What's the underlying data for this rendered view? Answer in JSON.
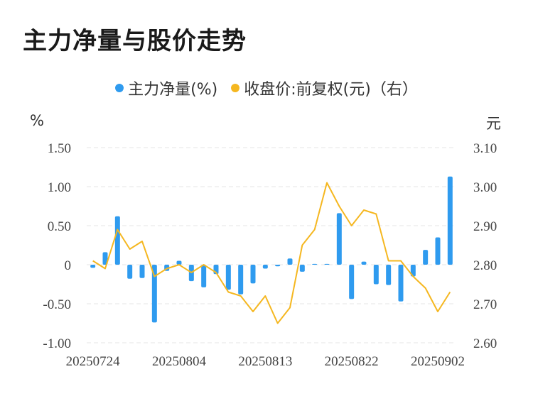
{
  "title": "主力净量与股价走势",
  "legend": {
    "bar_label": "主力净量(%)",
    "line_label": "收盘价:前复权(元)（右）"
  },
  "units": {
    "left": "%",
    "right": "元"
  },
  "colors": {
    "bar": "#2f9bef",
    "line": "#f5b720",
    "grid": "#e6e6e6"
  },
  "chart_data": {
    "type": "bar+line",
    "title": "主力净量与股价走势",
    "x_tick_labels": [
      "20250724",
      "20250804",
      "20250813",
      "20250822",
      "20250902"
    ],
    "y_left": {
      "label": "%",
      "ylim": [
        -1.0,
        1.5
      ],
      "ticks": [
        "1.50",
        "1.00",
        "0.50",
        "0",
        "-0.50",
        "-1.00"
      ],
      "tick_values": [
        1.5,
        1.0,
        0.5,
        0,
        -0.5,
        -1.0
      ]
    },
    "y_right": {
      "label": "元",
      "ylim": [
        2.6,
        3.1
      ],
      "ticks": [
        "3.10",
        "3.00",
        "2.90",
        "2.80",
        "2.70",
        "2.60"
      ],
      "tick_values": [
        3.1,
        3.0,
        2.9,
        2.8,
        2.7,
        2.6
      ]
    },
    "grid": true,
    "legend_position": "top-center",
    "series": [
      {
        "name": "主力净量(%)",
        "type": "bar",
        "axis": "left",
        "values": [
          -0.04,
          0.16,
          0.62,
          -0.18,
          -0.17,
          -0.74,
          -0.08,
          0.05,
          -0.21,
          -0.29,
          -0.12,
          -0.32,
          -0.38,
          -0.24,
          -0.05,
          -0.02,
          0.08,
          -0.09,
          0.01,
          0.01,
          0.66,
          -0.44,
          0.04,
          -0.25,
          -0.26,
          -0.47,
          -0.15,
          0.19,
          0.35,
          1.13
        ]
      },
      {
        "name": "收盘价:前复权(元)（右）",
        "type": "line",
        "axis": "right",
        "values": [
          2.81,
          2.79,
          2.89,
          2.84,
          2.86,
          2.77,
          2.79,
          2.8,
          2.78,
          2.8,
          2.78,
          2.73,
          2.72,
          2.68,
          2.72,
          2.65,
          2.69,
          2.85,
          2.89,
          3.01,
          2.95,
          2.9,
          2.94,
          2.93,
          2.81,
          2.81,
          2.77,
          2.74,
          2.68,
          2.73
        ]
      }
    ]
  }
}
